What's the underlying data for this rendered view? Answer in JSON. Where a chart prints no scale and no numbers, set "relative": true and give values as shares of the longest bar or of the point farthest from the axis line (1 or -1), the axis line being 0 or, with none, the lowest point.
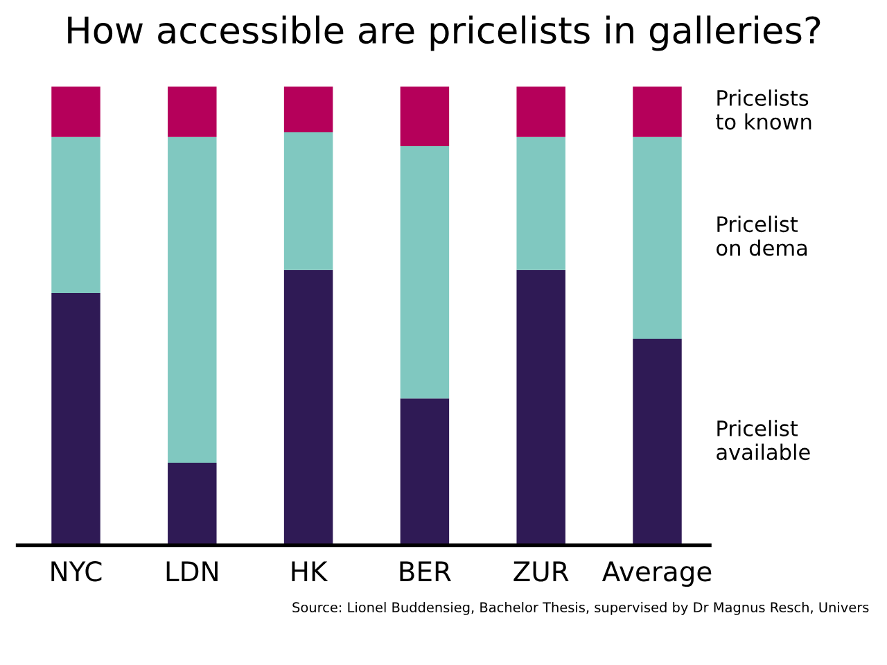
{
  "chart_data": {
    "type": "bar",
    "title": "How accessible are pricelists in galleries?",
    "categories": [
      "NYC",
      "LDN",
      "HK",
      "BER",
      "ZUR",
      "Average"
    ],
    "stacked": true,
    "relative": true,
    "series": [
      {
        "name": "Pricelist\navailable",
        "color": "#2f1a55",
        "values": [
          0.55,
          0.18,
          0.6,
          0.32,
          0.6,
          0.45
        ]
      },
      {
        "name": "Pricelist\non dema",
        "color": "#80c8c0",
        "values": [
          0.34,
          0.71,
          0.3,
          0.55,
          0.29,
          0.44
        ]
      },
      {
        "name": "Pricelists\nto known",
        "color": "#b5005a",
        "values": [
          0.11,
          0.11,
          0.1,
          0.13,
          0.11,
          0.11
        ]
      }
    ],
    "annotations": [
      "Source: Lionel Buddensieg, Bachelor Thesis, supervised by Dr Magnus Resch, Univers"
    ]
  }
}
